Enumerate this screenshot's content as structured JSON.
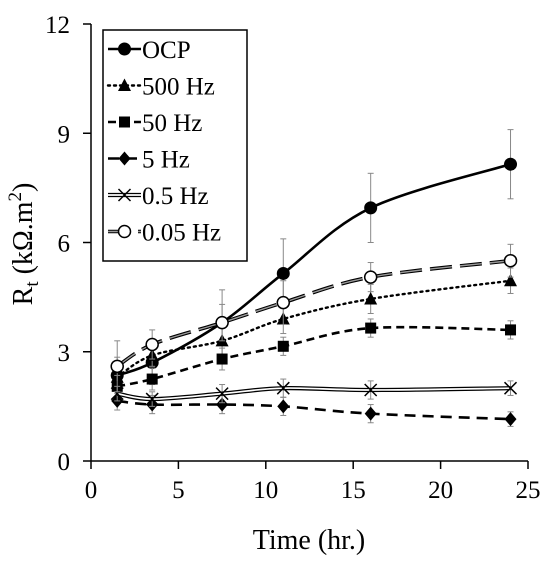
{
  "chart_data": {
    "type": "line",
    "title": "",
    "xlabel": "Time (hr.)",
    "ylabel": {
      "main": "R",
      "sub": "t",
      "unit": " (kΩ.m",
      "sup": "2",
      "close": ")"
    },
    "xlim": [
      0,
      25
    ],
    "ylim": [
      0,
      12
    ],
    "xticks": [
      0,
      5,
      10,
      15,
      20,
      25
    ],
    "yticks": [
      0,
      3,
      6,
      9,
      12
    ],
    "grid": false,
    "legend_position": "top-left",
    "series": [
      {
        "name": "OCP",
        "marker": "circle-filled",
        "dash": "solid",
        "width": 2.6,
        "x": [
          1.5,
          3.5,
          7.5,
          11,
          16,
          24
        ],
        "y": [
          2.35,
          2.7,
          3.8,
          5.15,
          6.95,
          8.15
        ],
        "err": [
          0.5,
          0.6,
          0.9,
          0.95,
          0.95,
          0.95
        ]
      },
      {
        "name": "500 Hz",
        "marker": "triangle-filled",
        "dash": "dotted",
        "width": 2.4,
        "x": [
          1.5,
          3.5,
          7.5,
          11,
          16,
          24
        ],
        "y": [
          2.3,
          2.9,
          3.3,
          3.9,
          4.45,
          4.95
        ],
        "err": [
          0.3,
          0.3,
          0.4,
          0.4,
          0.4,
          0.35
        ]
      },
      {
        "name": "50 Hz",
        "marker": "square-filled",
        "dash": "dashed",
        "width": 2.6,
        "x": [
          1.5,
          3.5,
          7.5,
          11,
          16,
          24
        ],
        "y": [
          2.05,
          2.25,
          2.8,
          3.15,
          3.65,
          3.6
        ],
        "err": [
          0.3,
          0.3,
          0.3,
          0.25,
          0.25,
          0.25
        ]
      },
      {
        "name": "5 Hz",
        "marker": "diamond-filled",
        "dash": "long-dashed",
        "width": 2.6,
        "x": [
          1.5,
          3.5,
          7.5,
          11,
          16,
          24
        ],
        "y": [
          1.65,
          1.55,
          1.55,
          1.5,
          1.3,
          1.15
        ],
        "err": [
          0.25,
          0.25,
          0.25,
          0.25,
          0.25,
          0.2
        ]
      },
      {
        "name": "0.5 Hz",
        "marker": "x",
        "dash": "double",
        "width": 1.2,
        "x": [
          1.5,
          3.5,
          7.5,
          11,
          16,
          24
        ],
        "y": [
          1.85,
          1.7,
          1.85,
          2.0,
          1.95,
          2.0
        ],
        "err": [
          0.2,
          0.2,
          0.25,
          0.25,
          0.25,
          0.2
        ]
      },
      {
        "name": "0.05 Hz",
        "marker": "circle-open",
        "dash": "long-dash-gray",
        "width": 2.0,
        "x": [
          1.5,
          3.5,
          7.5,
          11,
          16,
          24
        ],
        "y": [
          2.6,
          3.2,
          3.8,
          4.35,
          5.05,
          5.5
        ],
        "err": [
          0.7,
          0.4,
          0.5,
          0.6,
          0.4,
          0.45
        ]
      }
    ]
  }
}
